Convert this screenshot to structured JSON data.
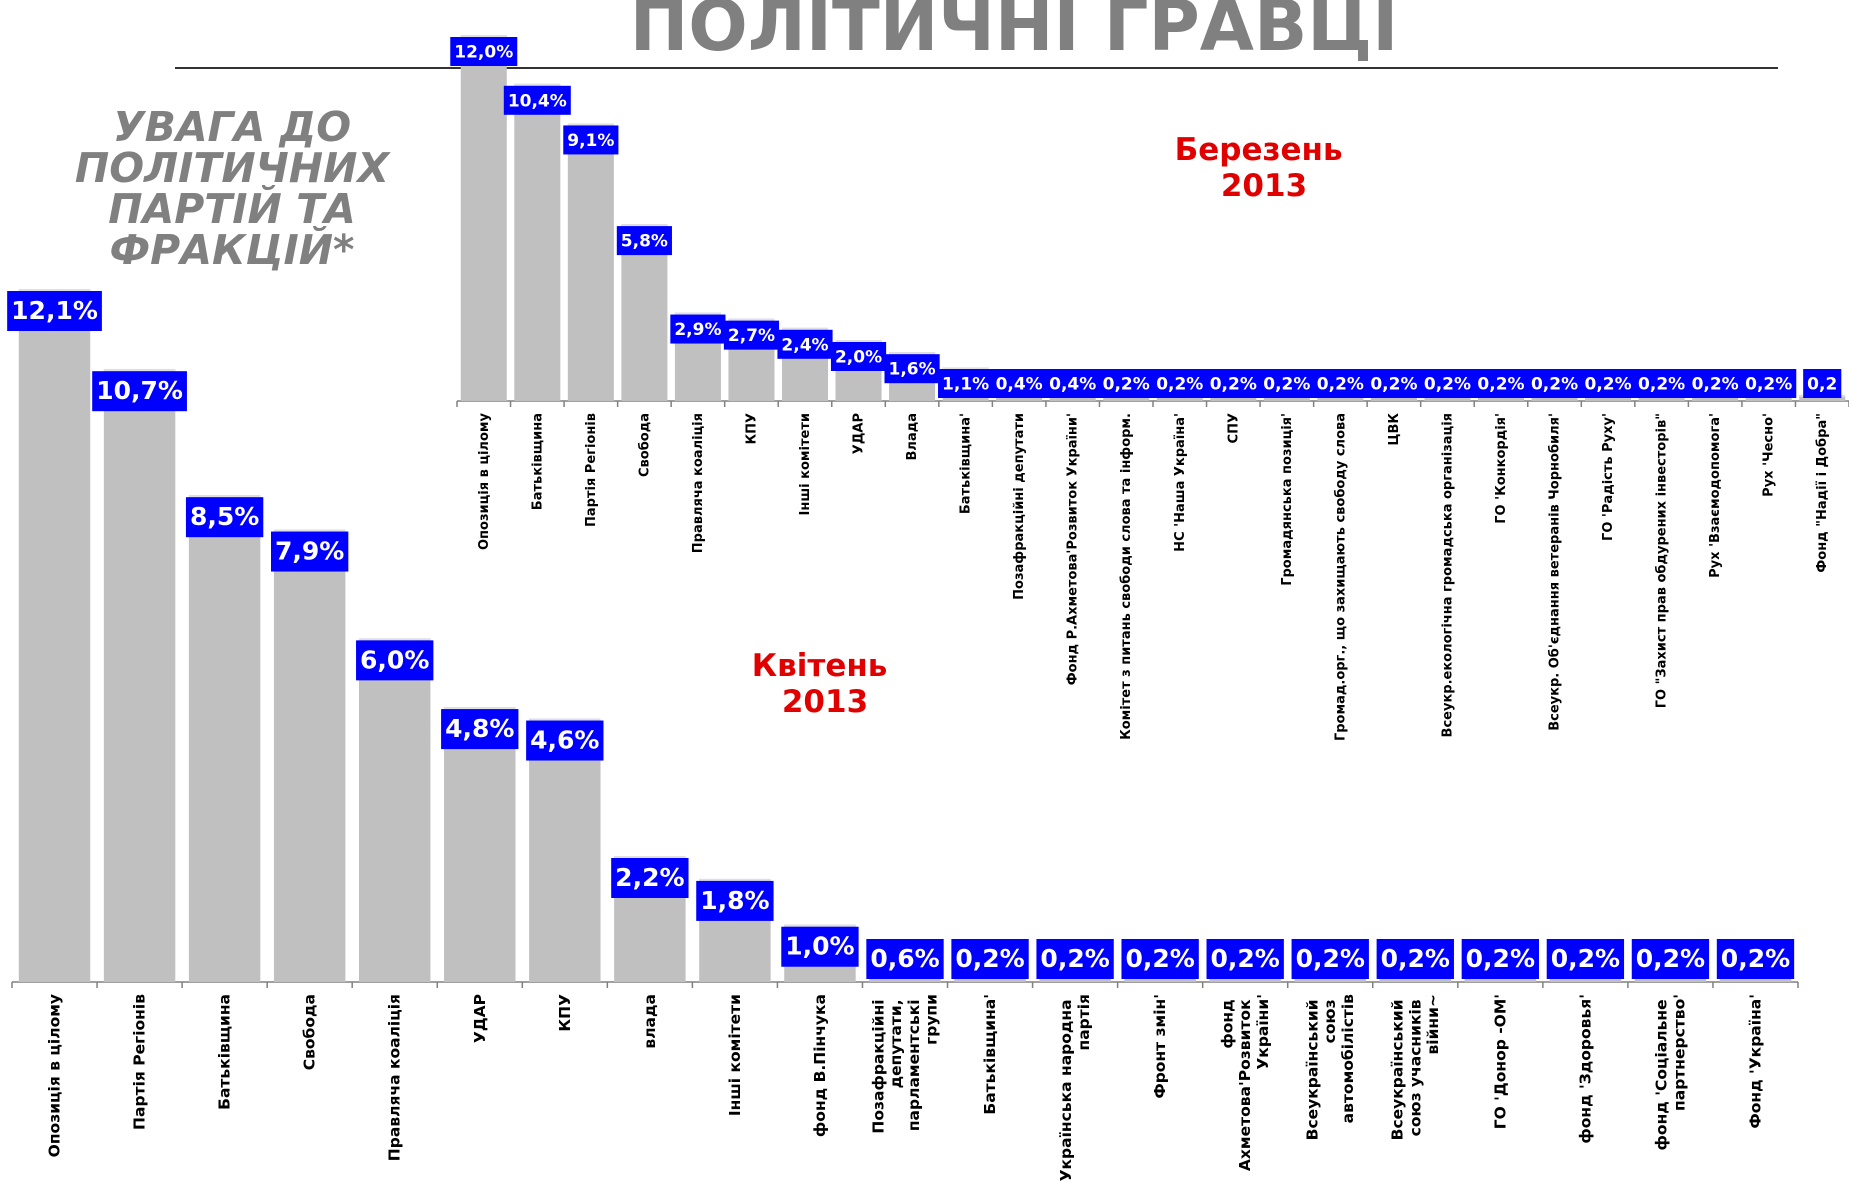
{
  "header": {
    "title": "ПОЛІТИЧНІ ГРАВЦІ",
    "subtitle": [
      "УВАГА ДО",
      "ПОЛІТИЧНИХ",
      "ПАРТІЙ ТА",
      "ФРАКЦІЙ*"
    ]
  },
  "chart_data": [
    {
      "type": "bar",
      "title": "Квітень 2013",
      "color": "#c0c0c0",
      "label_color": "#0000ff",
      "ylim": [
        0,
        12.1
      ],
      "categories": [
        "Опозиція в цілому",
        "Партія Регіонів",
        "Батьківщина",
        "Свобода",
        "Правляча коаліція",
        "УДАР",
        "КПУ",
        "влада",
        "Інші комітети",
        "фонд В.Пінчука",
        "Позафракційні депутати, парламентські групи",
        "Батьківщина'",
        "Українська народна партія",
        "Фронт змін'",
        "фонд Ахметова'Розвиток України'",
        "Всеукраїнський союз автомобілістів",
        "Всеукраїнський союз учасників війни~",
        "ГО 'Донор -ОМ'",
        "фонд 'Здоровья'",
        "фонд 'Соціальне партнерство'",
        "Фонд 'Україна'"
      ],
      "values": [
        12.1,
        10.7,
        8.5,
        7.9,
        6.0,
        4.8,
        4.6,
        2.2,
        1.8,
        1.0,
        0.6,
        0.2,
        0.2,
        0.2,
        0.2,
        0.2,
        0.2,
        0.2,
        0.2,
        0.2,
        0.2
      ],
      "value_labels": [
        "12,1%",
        "10,7%",
        "8,5%",
        "7,9%",
        "6,0%",
        "4,8%",
        "4,6%",
        "2,2%",
        "1,8%",
        "1,0%",
        "0,6%",
        "0,2%",
        "0,2%",
        "0,2%",
        "0,2%",
        "0,2%",
        "0,2%",
        "0,2%",
        "0,2%",
        "0,2%",
        "0,2%"
      ]
    },
    {
      "type": "bar",
      "title": "Березень 2013",
      "color": "#c0c0c0",
      "label_color": "#0000ff",
      "ylim": [
        0,
        12.0
      ],
      "categories": [
        "Опозиція в цілому",
        "Батьківщина",
        "Партія Регіонів",
        "Свобода",
        "Правляча коаліція",
        "КПУ",
        "Інші комітети",
        "УДАР",
        "Влада",
        "Батьківщина'",
        "Позафракційні депутати",
        "Фонд Р.Ахметова'Розвиток України'",
        "Комітет з питань свободи слова та інформ.",
        "НС 'Наша Україна'",
        "СПУ",
        "Громадянська позиція'",
        "Громад.орг., що захищають свободу слова",
        "ЦВК",
        "Всеукр.екологічна громадська організація",
        "ГО 'Конкордія'",
        "Всеукр. Об'єднання ветеранів Чорнобиля'",
        "ГО 'Радість Руху'",
        "ГО \"Захист прав обдурених інвесторів\"",
        "Рух 'Взаємодопомога'",
        "Рух 'Чесно'",
        "Фонд \"Надії і Добра\""
      ],
      "values": [
        12.0,
        10.4,
        9.1,
        5.8,
        2.9,
        2.7,
        2.4,
        2.0,
        1.6,
        1.1,
        0.4,
        0.4,
        0.2,
        0.2,
        0.2,
        0.2,
        0.2,
        0.2,
        0.2,
        0.2,
        0.2,
        0.2,
        0.2,
        0.2,
        0.2,
        0.2
      ],
      "value_labels": [
        "12,0%",
        "10,4%",
        "9,1%",
        "5,8%",
        "2,9%",
        "2,7%",
        "2,4%",
        "2,0%",
        "1,6%",
        "1,1%",
        "0,4%",
        "0,4%",
        "0,2%",
        "0,2%",
        "0,2%",
        "0,2%",
        "0,2%",
        "0,2%",
        "0,2%",
        "0,2%",
        "0,2%",
        "0,2%",
        "0,2%",
        "0,2%",
        "0,2%",
        "0,2"
      ]
    }
  ]
}
